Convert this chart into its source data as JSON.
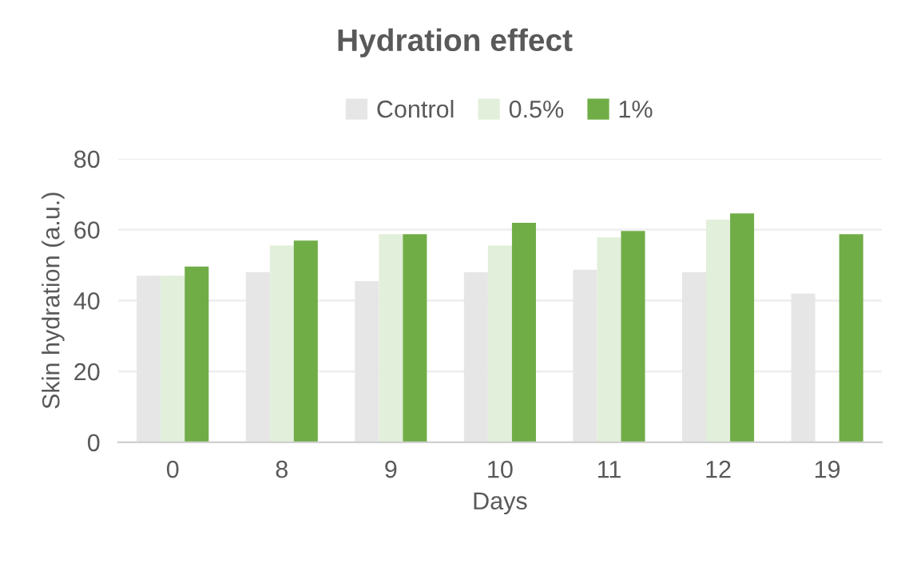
{
  "chart_data": {
    "type": "bar",
    "title": "Hydration effect",
    "xlabel": "Days",
    "ylabel": "Skin hydration (a.u.)",
    "categories": [
      "0",
      "8",
      "9",
      "10",
      "11",
      "12",
      "19"
    ],
    "series": [
      {
        "name": "Control",
        "color": "#e6e6e6",
        "values": [
          47,
          48,
          45.5,
          48,
          48.7,
          48,
          42
        ]
      },
      {
        "name": "0.5%",
        "color": "#e2efda",
        "values": [
          47,
          55.5,
          58.7,
          55.5,
          57.8,
          62.8,
          null
        ]
      },
      {
        "name": "1%",
        "color": "#70ad47",
        "values": [
          49.6,
          56.9,
          58.7,
          61.9,
          59.6,
          64.6,
          58.7
        ]
      }
    ],
    "ylim": [
      0,
      80
    ],
    "yticks": [
      0,
      20,
      40,
      60,
      80
    ],
    "grid": "y",
    "legend": "top"
  }
}
